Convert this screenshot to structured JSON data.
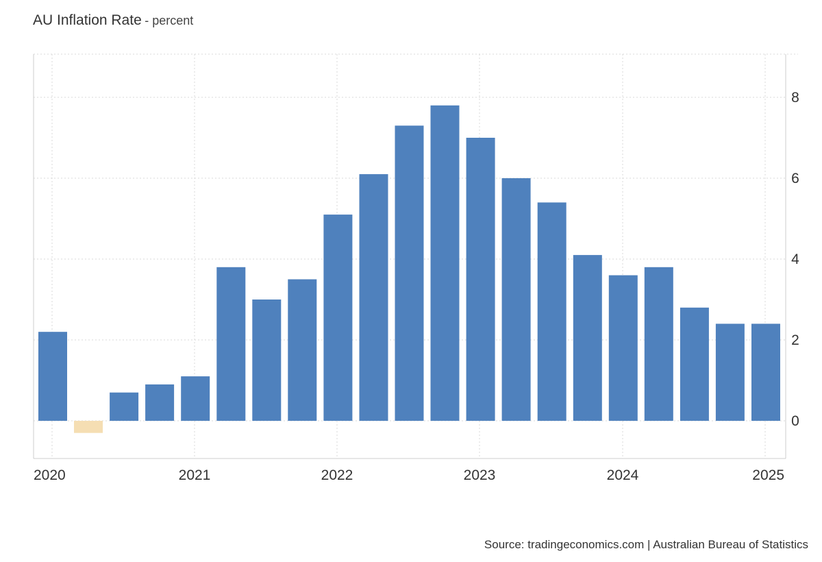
{
  "chart_data": {
    "type": "bar",
    "title": "AU Inflation Rate",
    "subtitle": "- percent",
    "x_ticks": [
      "2020",
      "2021",
      "2022",
      "2023",
      "2024",
      "2025"
    ],
    "y_ticks": [
      "0",
      "2",
      "4",
      "6",
      "8"
    ],
    "ylim": [
      -0.9,
      9
    ],
    "y_axis_position": "right",
    "grid": true,
    "series": [
      {
        "quarters": [
          "2020-Q1",
          "2020-Q2",
          "2020-Q3",
          "2020-Q4",
          "2021-Q1",
          "2021-Q2",
          "2021-Q3",
          "2021-Q4",
          "2022-Q1",
          "2022-Q2",
          "2022-Q3",
          "2022-Q4",
          "2023-Q1",
          "2023-Q2",
          "2023-Q3",
          "2023-Q4",
          "2024-Q1",
          "2024-Q2",
          "2024-Q3",
          "2024-Q4",
          "2025-Q1"
        ],
        "values": [
          2.2,
          -0.3,
          0.7,
          0.9,
          1.1,
          3.8,
          3.0,
          3.5,
          5.1,
          6.1,
          7.3,
          7.8,
          7.0,
          6.0,
          5.4,
          4.1,
          3.6,
          3.8,
          2.8,
          2.4,
          2.4
        ]
      }
    ],
    "colors": {
      "positive": "#4f81bd",
      "negative": "#f5deb3"
    }
  },
  "source": "Source: tradingeconomics.com | Australian Bureau of Statistics"
}
